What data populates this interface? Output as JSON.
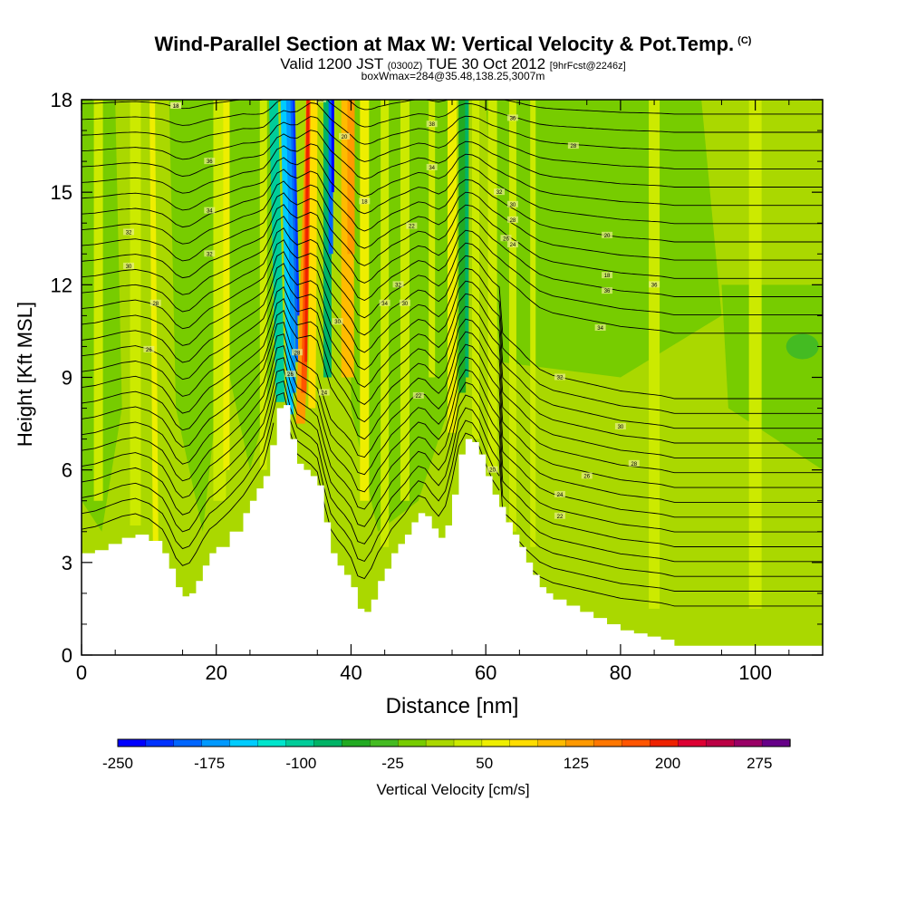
{
  "chart_data": {
    "type": "heatmap",
    "title": "Wind-Parallel Section at Max W: Vertical Velocity & Pot.Temp.",
    "title_mark": "(C)",
    "subtitle_main": "Valid 1200 JST",
    "subtitle_utc": "(0300Z)",
    "subtitle_date": "TUE 30 Oct 2012",
    "subtitle_fcst": "[9hrFcst@2246z]",
    "subsubtitle": "boxWmax=284@35.48,138.25,3007m",
    "xlabel": "Distance [nm]",
    "ylabel": "Height [Kft MSL]",
    "xlim": [
      0,
      110
    ],
    "ylim": [
      0,
      18
    ],
    "xticks": [
      "0",
      "20",
      "40",
      "60",
      "80",
      "100"
    ],
    "yticks": [
      "0",
      "3",
      "6",
      "9",
      "12",
      "15",
      "18"
    ],
    "colorbar": {
      "label": "Vertical Velocity [cm/s]",
      "tick_labels": [
        "-250",
        "-175",
        "-100",
        "-25",
        "50",
        "125",
        "200",
        "275"
      ],
      "tick_values": [
        -250,
        -175,
        -100,
        -25,
        50,
        125,
        200,
        275
      ],
      "range": [
        -250,
        300
      ],
      "step": 25,
      "colors": [
        "#0000ff",
        "#0033ff",
        "#0066ff",
        "#0099ff",
        "#00ccff",
        "#00e5cc",
        "#00cc99",
        "#00b366",
        "#22aa22",
        "#44bb22",
        "#77cc00",
        "#aad800",
        "#ccea00",
        "#eeee00",
        "#ffdd00",
        "#ffbb00",
        "#ff9900",
        "#ff7700",
        "#ff5500",
        "#ee2200",
        "#dd0033",
        "#bb0044",
        "#990066",
        "#660088"
      ]
    },
    "terrain": [
      [
        0,
        3.3
      ],
      [
        2,
        3.4
      ],
      [
        4,
        3.6
      ],
      [
        6,
        3.8
      ],
      [
        8,
        3.9
      ],
      [
        10,
        3.7
      ],
      [
        12,
        3.3
      ],
      [
        13,
        2.8
      ],
      [
        14,
        2.2
      ],
      [
        15,
        1.9
      ],
      [
        16,
        2.0
      ],
      [
        17,
        2.4
      ],
      [
        18,
        2.9
      ],
      [
        19,
        3.3
      ],
      [
        20,
        3.5
      ],
      [
        22,
        4.0
      ],
      [
        24,
        4.6
      ],
      [
        25,
        5.0
      ],
      [
        26,
        5.4
      ],
      [
        27,
        5.8
      ],
      [
        28,
        6.8
      ],
      [
        29,
        8.0
      ],
      [
        30,
        8.1
      ],
      [
        31,
        7.0
      ],
      [
        32,
        6.2
      ],
      [
        33,
        6.0
      ],
      [
        34,
        5.8
      ],
      [
        35,
        5.5
      ],
      [
        36,
        4.3
      ],
      [
        37,
        3.3
      ],
      [
        38,
        2.9
      ],
      [
        39,
        2.6
      ],
      [
        40,
        2.2
      ],
      [
        41,
        1.5
      ],
      [
        42,
        1.4
      ],
      [
        43,
        1.8
      ],
      [
        44,
        2.4
      ],
      [
        45,
        2.8
      ],
      [
        46,
        3.3
      ],
      [
        47,
        3.6
      ],
      [
        48,
        3.9
      ],
      [
        49,
        4.3
      ],
      [
        50,
        4.6
      ],
      [
        51,
        4.5
      ],
      [
        52,
        4.1
      ],
      [
        53,
        3.8
      ],
      [
        54,
        4.2
      ],
      [
        55,
        5.2
      ],
      [
        56,
        6.5
      ],
      [
        57,
        7.0
      ],
      [
        58,
        6.9
      ],
      [
        59,
        6.5
      ],
      [
        60,
        5.8
      ],
      [
        61,
        5.2
      ],
      [
        62,
        4.8
      ],
      [
        63,
        4.3
      ],
      [
        64,
        3.9
      ],
      [
        65,
        3.5
      ],
      [
        66,
        3.0
      ],
      [
        67,
        2.6
      ],
      [
        68,
        2.2
      ],
      [
        69,
        2.0
      ],
      [
        70,
        1.8
      ],
      [
        72,
        1.6
      ],
      [
        74,
        1.4
      ],
      [
        76,
        1.2
      ],
      [
        78,
        1.0
      ],
      [
        80,
        0.8
      ],
      [
        82,
        0.7
      ],
      [
        84,
        0.6
      ],
      [
        86,
        0.5
      ],
      [
        88,
        0.3
      ],
      [
        90,
        0.3
      ],
      [
        110,
        0.3
      ]
    ],
    "theta_levels": [
      18,
      20,
      22,
      24,
      26,
      28,
      30,
      32,
      34,
      36,
      38
    ],
    "contour_labels": [
      "34",
      "32",
      "30",
      "28",
      "26",
      "36",
      "38",
      "34",
      "32",
      "30",
      "28",
      "26",
      "24",
      "22",
      "20",
      "18",
      "36",
      "34",
      "32",
      "30",
      "28",
      "36",
      "34",
      "32",
      "30",
      "28",
      "26",
      "24",
      "22",
      "20",
      "18",
      "38",
      "36",
      "34",
      "32",
      "30",
      "28",
      "26",
      "24",
      "22",
      "20",
      "18"
    ]
  }
}
